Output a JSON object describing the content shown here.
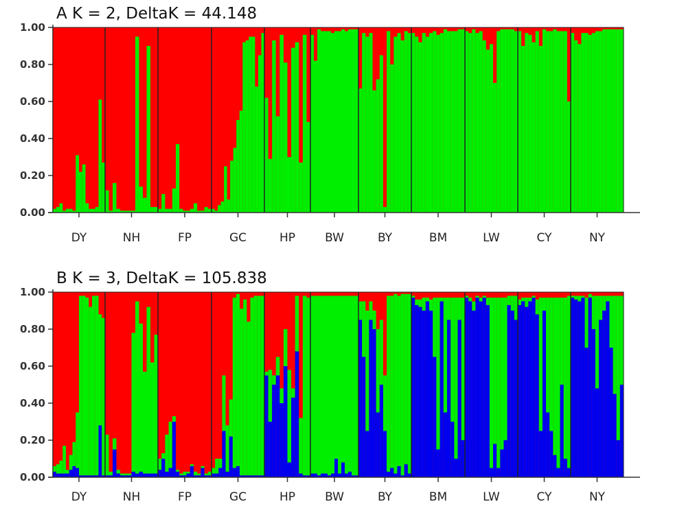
{
  "chart_data": [
    {
      "type": "bar",
      "subtype": "stacked-admixture",
      "panel": "A",
      "title": "A  K = 2, DeltaK = 44.148",
      "ylim": [
        0,
        1
      ],
      "yticks": [
        "0.00",
        "0.20",
        "0.40",
        "0.60",
        "0.80",
        "1.00"
      ],
      "categories": [
        "DY",
        "NH",
        "FP",
        "GC",
        "HP",
        "BW",
        "BY",
        "BM",
        "LW",
        "CY",
        "NY"
      ],
      "cluster_colors": {
        "red": "#ff0000",
        "green": "#00ee00"
      },
      "populations": [
        {
          "name": "DY",
          "green": [
            0.02,
            0.03,
            0.05,
            0.01,
            0.02,
            0.02,
            0.01,
            0.31,
            0.22,
            0.26,
            0.05,
            0.02,
            0.02,
            0.03,
            0.61,
            0.27
          ]
        },
        {
          "name": "NH",
          "green": [
            0.12,
            0.01,
            0.16,
            0.02,
            0.01,
            0.01,
            0.01,
            0.01,
            0.95,
            0.14,
            0.08,
            0.9,
            0.03,
            0.03
          ]
        },
        {
          "name": "FP",
          "green": [
            0.02,
            0.1,
            0.02,
            0.02,
            0.13,
            0.37,
            0.02,
            0.01,
            0.01,
            0.02,
            0.05,
            0.01,
            0.01,
            0.03,
            0.02
          ]
        },
        {
          "name": "GC",
          "green": [
            0.02,
            0.01,
            0.04,
            0.06,
            0.25,
            0.07,
            0.28,
            0.35,
            0.5,
            0.55,
            0.92,
            0.93,
            0.95,
            0.95,
            0.68,
            0.85,
            0.97
          ]
        },
        {
          "name": "HP",
          "green": [
            0.62,
            0.29,
            0.93,
            0.52,
            0.96,
            0.81,
            0.3,
            0.89,
            0.92,
            0.27,
            0.96,
            0.49
          ]
        },
        {
          "name": "BW",
          "green": [
            0.96,
            0.82,
            0.99,
            0.98,
            0.98,
            0.98,
            0.97,
            0.98,
            0.98,
            0.99,
            0.98,
            0.99,
            0.99,
            0.99
          ]
        },
        {
          "name": "BY",
          "green": [
            0.67,
            0.97,
            0.95,
            0.97,
            0.66,
            0.72,
            0.85,
            0.03,
            0.98,
            0.8,
            0.95,
            0.97,
            0.93,
            0.98,
            0.97
          ]
        },
        {
          "name": "BM",
          "green": [
            0.97,
            0.95,
            0.92,
            0.97,
            0.95,
            0.97,
            0.98,
            0.96,
            0.97,
            0.99,
            0.98,
            0.98,
            0.98,
            0.99,
            0.99
          ]
        },
        {
          "name": "LW",
          "green": [
            0.98,
            0.97,
            0.99,
            0.97,
            0.98,
            0.93,
            0.88,
            0.91,
            0.7,
            0.98,
            0.99,
            0.99,
            0.99,
            0.99,
            0.98
          ]
        },
        {
          "name": "CY",
          "green": [
            0.98,
            0.9,
            0.97,
            0.96,
            0.92,
            0.98,
            0.9,
            0.99,
            0.98,
            0.98,
            0.99,
            0.98,
            0.98,
            0.98,
            0.6
          ]
        },
        {
          "name": "NY",
          "green": [
            0.97,
            0.93,
            0.91,
            0.97,
            0.97,
            0.96,
            0.97,
            0.98,
            0.98,
            0.99,
            0.99,
            0.99,
            0.99,
            0.99,
            0.99
          ]
        }
      ]
    },
    {
      "type": "bar",
      "subtype": "stacked-admixture",
      "panel": "B",
      "title": "B  K = 3, DeltaK = 105.838",
      "ylim": [
        0,
        1
      ],
      "yticks": [
        "0.00",
        "0.20",
        "0.40",
        "0.60",
        "0.80",
        "1.00"
      ],
      "categories": [
        "DY",
        "NH",
        "FP",
        "GC",
        "HP",
        "BW",
        "BY",
        "BM",
        "LW",
        "CY",
        "NY"
      ],
      "cluster_colors": {
        "red": "#ff0000",
        "green": "#00ee00",
        "blue": "#0000ee"
      },
      "populations": [
        {
          "name": "DY",
          "green": [
            0.03,
            0.05,
            0.07,
            0.15,
            0.02,
            0.08,
            0.13,
            0.3,
            0.97,
            0.97,
            0.96,
            0.91,
            0.97,
            0.97,
            0.6,
            0.85
          ],
          "blue": [
            0.03,
            0.02,
            0.02,
            0.02,
            0.02,
            0.04,
            0.06,
            0.05,
            0.01,
            0.01,
            0.01,
            0.01,
            0.01,
            0.01,
            0.28,
            0.01
          ]
        },
        {
          "name": "NH",
          "green": [
            0.22,
            0.02,
            0.06,
            0.02,
            0.01,
            0.01,
            0.01,
            0.75,
            0.93,
            0.8,
            0.55,
            0.9,
            0.6,
            0.75
          ],
          "blue": [
            0.01,
            0.01,
            0.15,
            0.02,
            0.01,
            0.01,
            0.01,
            0.03,
            0.02,
            0.03,
            0.02,
            0.02,
            0.02,
            0.02
          ]
        },
        {
          "name": "FP",
          "green": [
            0.06,
            0.03,
            0.2,
            0.25,
            0.03,
            0.01,
            0.01,
            0.02,
            0.01,
            0.01,
            0.02,
            0.01,
            0.01,
            0.01,
            0.02
          ],
          "blue": [
            0.04,
            0.1,
            0.03,
            0.05,
            0.3,
            0.03,
            0.01,
            0.01,
            0.02,
            0.06,
            0.01,
            0.01,
            0.05,
            0.01,
            0.01
          ]
        },
        {
          "name": "GC",
          "green": [
            0.03,
            0.08,
            0.05,
            0.3,
            0.25,
            0.2,
            0.92,
            0.93,
            0.9,
            0.95,
            0.83,
            0.96,
            0.97,
            0.97,
            0.97
          ],
          "blue": [
            0.02,
            0.02,
            0.05,
            0.25,
            0.03,
            0.22,
            0.05,
            0.06,
            0.01,
            0.01,
            0.01,
            0.01,
            0.01,
            0.01,
            0.01
          ]
        },
        {
          "name": "HP",
          "green": [
            0.02,
            0.28,
            0.05,
            0.1,
            0.08,
            0.2,
            0.5,
            0.05,
            0.3,
            0.3,
            0.97,
            0.96
          ],
          "blue": [
            0.55,
            0.3,
            0.5,
            0.55,
            0.4,
            0.6,
            0.08,
            0.43,
            0.68,
            0.02,
            0.01,
            0.01
          ]
        },
        {
          "name": "BW",
          "green": [
            0.96,
            0.96,
            0.97,
            0.96,
            0.96,
            0.97,
            0.96,
            0.88,
            0.96,
            0.9,
            0.96,
            0.95,
            0.97,
            0.97
          ],
          "blue": [
            0.02,
            0.02,
            0.01,
            0.02,
            0.02,
            0.01,
            0.02,
            0.1,
            0.02,
            0.08,
            0.02,
            0.03,
            0.01,
            0.01
          ]
        },
        {
          "name": "BY",
          "green": [
            0.1,
            0.3,
            0.65,
            0.1,
            0.1,
            0.45,
            0.35,
            0.3,
            0.95,
            0.93,
            0.97,
            0.92,
            0.98,
            0.92,
            0.97
          ],
          "blue": [
            0.85,
            0.65,
            0.25,
            0.85,
            0.8,
            0.35,
            0.5,
            0.25,
            0.03,
            0.05,
            0.02,
            0.06,
            0.01,
            0.07,
            0.02
          ]
        },
        {
          "name": "BM",
          "green": [
            0.01,
            0.03,
            0.04,
            0.07,
            0.02,
            0.06,
            0.32,
            0.82,
            0.02,
            0.62,
            0.12,
            0.67,
            0.87,
            0.12,
            0.77
          ],
          "blue": [
            0.97,
            0.93,
            0.92,
            0.9,
            0.95,
            0.9,
            0.65,
            0.15,
            0.95,
            0.35,
            0.85,
            0.3,
            0.1,
            0.85,
            0.2
          ]
        },
        {
          "name": "LW",
          "green": [
            0.01,
            0.02,
            0.05,
            0.01,
            0.02,
            0.01,
            0.04,
            0.92,
            0.79,
            0.92,
            0.82,
            0.77,
            0.05,
            0.08,
            0.13
          ],
          "blue": [
            0.97,
            0.95,
            0.9,
            0.97,
            0.95,
            0.97,
            0.93,
            0.05,
            0.18,
            0.05,
            0.15,
            0.2,
            0.93,
            0.9,
            0.85
          ]
        },
        {
          "name": "CY",
          "green": [
            0.03,
            0.02,
            0.05,
            0.02,
            0.01,
            0.08,
            0.72,
            0.07,
            0.62,
            0.72,
            0.85,
            0.92,
            0.47,
            0.87,
            0.93
          ],
          "blue": [
            0.93,
            0.95,
            0.92,
            0.95,
            0.97,
            0.88,
            0.25,
            0.9,
            0.35,
            0.25,
            0.12,
            0.05,
            0.5,
            0.1,
            0.05
          ]
        },
        {
          "name": "NY",
          "green": [
            0.01,
            0.02,
            0.03,
            0.01,
            0.27,
            0.02,
            0.18,
            0.5,
            0.13,
            0.08,
            0.03,
            0.28,
            0.53,
            0.78,
            0.48
          ],
          "blue": [
            0.97,
            0.96,
            0.95,
            0.97,
            0.7,
            0.97,
            0.8,
            0.48,
            0.85,
            0.9,
            0.95,
            0.7,
            0.45,
            0.2,
            0.5
          ]
        }
      ]
    }
  ]
}
